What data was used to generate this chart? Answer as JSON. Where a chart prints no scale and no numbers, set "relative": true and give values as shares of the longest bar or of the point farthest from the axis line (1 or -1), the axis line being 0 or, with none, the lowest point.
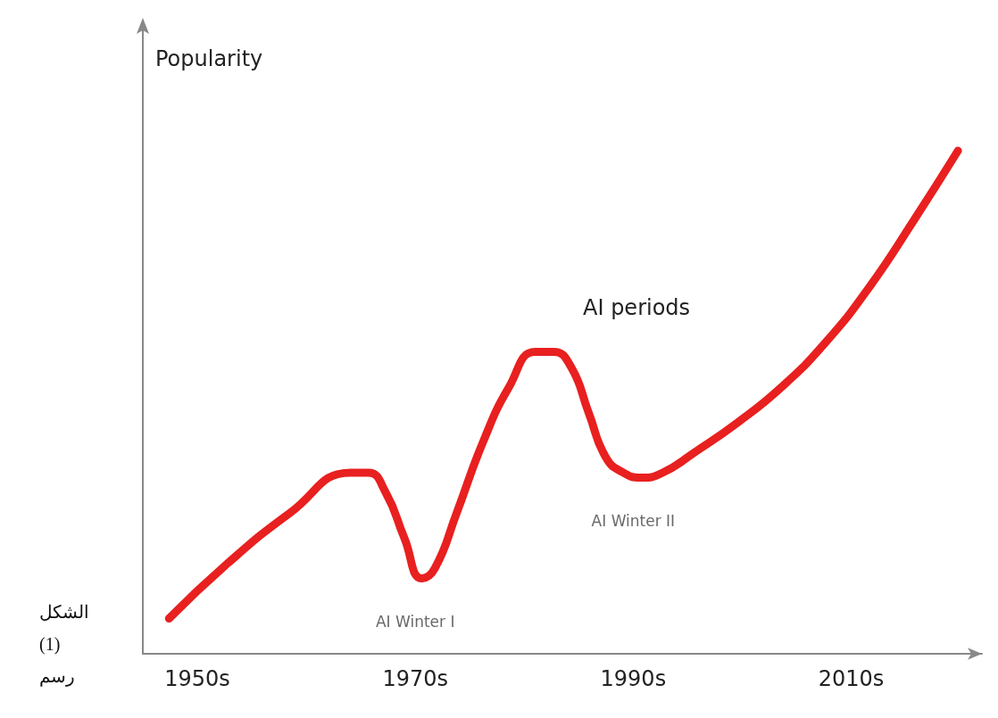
{
  "chart_data": {
    "type": "line",
    "relative": true,
    "ylabel": "Popularity",
    "x": [
      1947.4,
      1952.8,
      1958.5,
      1964.1,
      1965.7,
      1967.3,
      1969.0,
      1970.6,
      1971.8,
      1973.8,
      1976.2,
      1978.6,
      1981.0,
      1982.7,
      1984.3,
      1985.9,
      1987.5,
      1989.1,
      1990.7,
      1992.7,
      1995.6,
      1999.6,
      2003.6,
      2007.7,
      2011.7,
      2015.7,
      2019.8
    ],
    "series": [
      {
        "color": "#e8201f",
        "values": [
          0.07,
          0.18,
          0.28,
          0.36,
          0.36,
          0.32,
          0.23,
          0.15,
          0.17,
          0.28,
          0.42,
          0.53,
          0.6,
          0.6,
          0.57,
          0.48,
          0.39,
          0.36,
          0.35,
          0.36,
          0.4,
          0.46,
          0.53,
          0.62,
          0.73,
          0.86,
          1
        ]
      }
    ],
    "xlim": [
      1945,
      2022
    ],
    "xticks": [
      {
        "value": 1950,
        "label": "1950s"
      },
      {
        "value": 1970,
        "label": "1970s"
      },
      {
        "value": 1990,
        "label": "1990s"
      },
      {
        "value": 2010,
        "label": "2010s"
      }
    ],
    "annotations": [
      "AI periods",
      {
        "text": "AI Winter I",
        "x": 1970,
        "y": 0.15
      },
      {
        "text": "AI Winter II",
        "x": 1990,
        "y": 0.35
      },
      "الشكل (1) رسم"
    ],
    "grid": false,
    "line_style": "solid"
  }
}
